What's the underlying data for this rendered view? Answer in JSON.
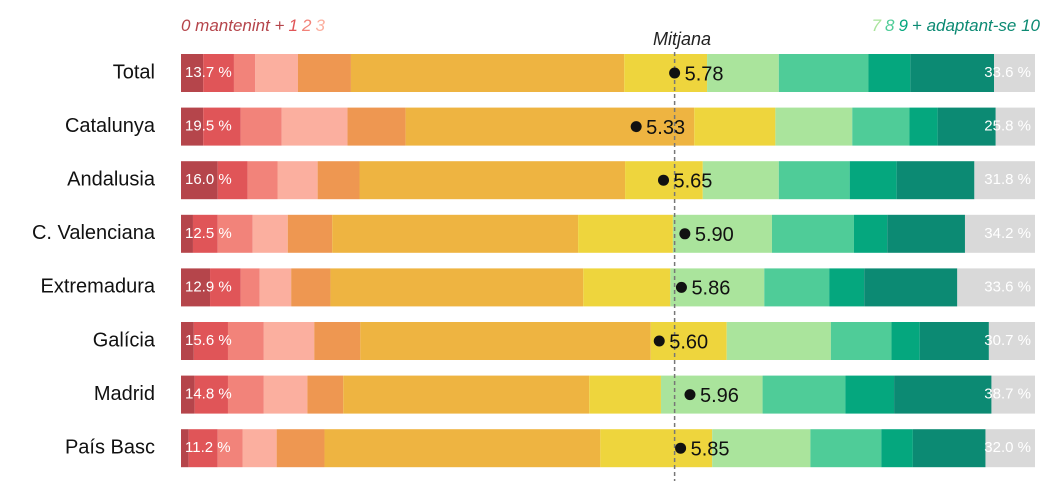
{
  "chart_data": {
    "type": "stacked-bar-100",
    "categories": [
      "Total",
      "Catalunya",
      "Andalusia",
      "C. Valenciana",
      "Extremadura",
      "Galícia",
      "Madrid",
      "País Basc"
    ],
    "xlim": [
      0,
      100
    ],
    "series": [
      {
        "name": "0 mantenint +",
        "color": "#b5454b",
        "values": [
          2.6,
          2.6,
          4.3,
          1.4,
          3.4,
          1.5,
          1.6,
          0.9
        ]
      },
      {
        "name": "1",
        "color": "#e05558",
        "values": [
          3.6,
          4.4,
          3.5,
          2.9,
          3.6,
          4.0,
          3.9,
          3.4
        ]
      },
      {
        "name": "2",
        "color": "#f2837a",
        "values": [
          2.5,
          4.8,
          3.5,
          4.1,
          2.2,
          4.2,
          4.2,
          2.9
        ]
      },
      {
        "name": "3",
        "color": "#fbaf9f",
        "values": [
          5.0,
          7.7,
          4.7,
          4.1,
          3.7,
          5.9,
          5.1,
          4.0
        ]
      },
      {
        "color": "#ee9751",
        "values": [
          6.2,
          6.8,
          4.9,
          5.2,
          4.6,
          5.4,
          4.2,
          5.6
        ]
      },
      {
        "color": "#eeb441",
        "values": [
          32.0,
          33.8,
          31.1,
          28.8,
          29.6,
          34.0,
          28.8,
          32.3
        ]
      },
      {
        "color": "#eed53d",
        "values": [
          9.7,
          9.5,
          9.1,
          11.1,
          10.2,
          8.9,
          8.4,
          13.1
        ]
      },
      {
        "name": "7",
        "color": "#aae49c",
        "values": [
          8.4,
          9.0,
          8.9,
          11.6,
          11.0,
          12.2,
          11.9,
          11.5
        ]
      },
      {
        "name": "8",
        "color": "#4fcc98",
        "values": [
          10.5,
          6.7,
          8.3,
          9.6,
          7.6,
          7.1,
          9.7,
          8.3
        ]
      },
      {
        "name": "9",
        "color": "#05a77e",
        "values": [
          4.9,
          3.3,
          5.5,
          3.9,
          4.1,
          3.3,
          5.7,
          3.7
        ]
      },
      {
        "name": "+ adaptant-se 10",
        "color": "#0c8a73",
        "values": [
          9.8,
          6.8,
          9.1,
          9.1,
          10.9,
          8.1,
          11.4,
          8.5
        ]
      },
      {
        "color": "#d9d9d9",
        "values": [
          4.8,
          4.6,
          7.1,
          8.2,
          9.1,
          5.4,
          5.1,
          5.8
        ]
      }
    ],
    "left_totals": {
      "values": [
        13.7,
        19.5,
        16.0,
        12.5,
        12.9,
        15.6,
        14.8,
        11.2
      ],
      "value_labels": [
        "13.7 %",
        "19.5 %",
        "16.0 %",
        "12.5 %",
        "12.9 %",
        "15.6 %",
        "14.8 %",
        "11.2 %"
      ]
    },
    "right_totals": {
      "values": [
        33.6,
        25.8,
        31.8,
        34.2,
        33.6,
        30.7,
        38.7,
        32.0
      ],
      "value_labels": [
        "33.6 %",
        "25.8 %",
        "31.8 %",
        "34.2 %",
        "33.6 %",
        "30.7 %",
        "38.7 %",
        "32.0 %"
      ]
    },
    "means": {
      "values": [
        5.78,
        5.33,
        5.65,
        5.9,
        5.86,
        5.6,
        5.96,
        5.85
      ],
      "value_labels": [
        "5.78",
        "5.33",
        "5.65",
        "5.90",
        "5.86",
        "5.60",
        "5.96",
        "5.85"
      ]
    },
    "x2lim": [
      0,
      10
    ],
    "mean_label": "Mitjana"
  }
}
